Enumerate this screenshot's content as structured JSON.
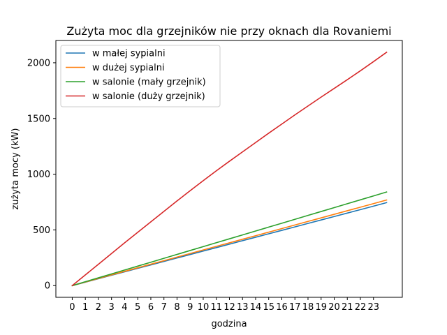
{
  "chart_data": {
    "type": "line",
    "title": "Zużyta moc dla grzejników nie przy oknach dla Rovaniemi",
    "xlabel": "godzina",
    "ylabel": "zużyta mocy (kW)",
    "x": [
      0,
      1,
      2,
      3,
      4,
      5,
      6,
      7,
      8,
      9,
      10,
      11,
      12,
      13,
      14,
      15,
      16,
      17,
      18,
      19,
      20,
      21,
      22,
      23,
      24
    ],
    "x_ticks": [
      "0",
      "1",
      "2",
      "3",
      "4",
      "5",
      "6",
      "7",
      "8",
      "9",
      "10",
      "11",
      "12",
      "13",
      "14",
      "15",
      "16",
      "17",
      "18",
      "19",
      "20",
      "21",
      "22",
      "23"
    ],
    "y_ticks": [
      "0",
      "500",
      "1000",
      "1500",
      "2000"
    ],
    "xlim": [
      -1.25,
      25.2
    ],
    "ylim": [
      -105,
      2200
    ],
    "grid": false,
    "legend_position": "top-left",
    "series": [
      {
        "name": "w małej sypialni",
        "color": "#1f77b4",
        "values": [
          0,
          31,
          62,
          93,
          124,
          155,
          186,
          217,
          248,
          279,
          310,
          341,
          372,
          403,
          434,
          465,
          496,
          527,
          558,
          589,
          620,
          651,
          682,
          713,
          745
        ]
      },
      {
        "name": "w dużej sypialni",
        "color": "#ff7f0e",
        "values": [
          0,
          32,
          64,
          96,
          128,
          160,
          192,
          224,
          256,
          288,
          320,
          352,
          384,
          416,
          448,
          480,
          512,
          544,
          576,
          608,
          640,
          672,
          704,
          736,
          768
        ]
      },
      {
        "name": "w salonie (mały grzejnik)",
        "color": "#2ca02c",
        "values": [
          0,
          35,
          70,
          105,
          140,
          175,
          210,
          245,
          280,
          315,
          350,
          385,
          420,
          455,
          490,
          525,
          560,
          595,
          630,
          665,
          700,
          735,
          770,
          805,
          840
        ]
      },
      {
        "name": "w salonie (duży grzejnik)",
        "color": "#d62728",
        "values": [
          0,
          96,
          192,
          288,
          384,
          478,
          572,
          666,
          760,
          852,
          942,
          1030,
          1116,
          1200,
          1284,
          1368,
          1450,
          1532,
          1612,
          1692,
          1770,
          1848,
          1928,
          2010,
          2094
        ]
      }
    ]
  }
}
